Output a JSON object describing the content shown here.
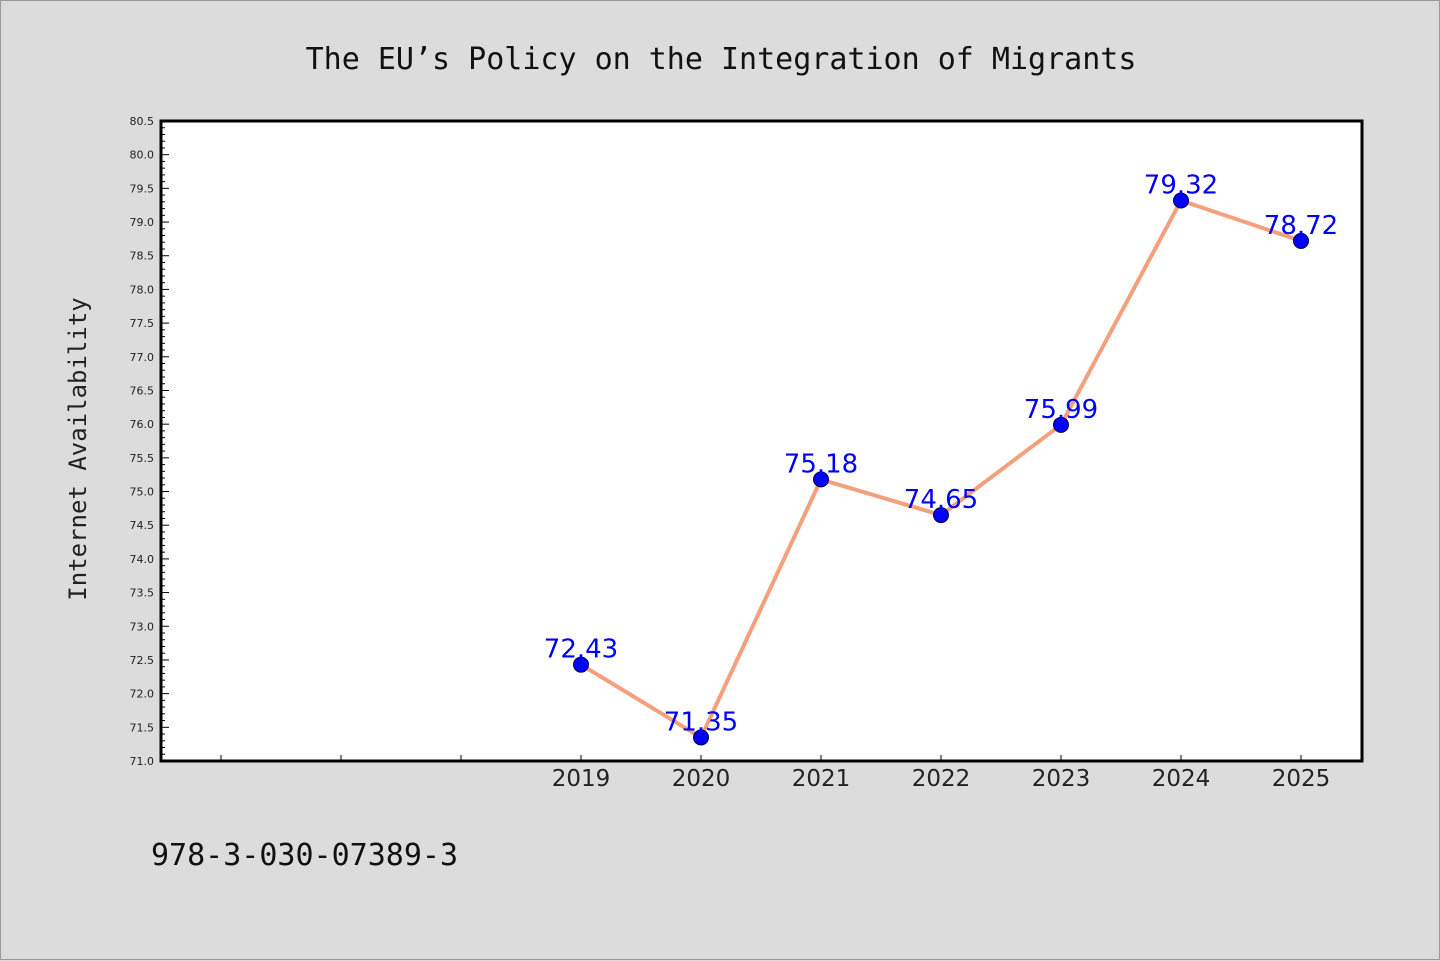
{
  "chart_data": {
    "type": "line",
    "title": "The EU’s Policy on the Integration of Migrants",
    "xlabel": "",
    "ylabel": "Internet Availability",
    "x": [
      "2019",
      "2020",
      "2021",
      "2022",
      "2023",
      "2024",
      "2025"
    ],
    "series": [
      {
        "values": [
          72.43,
          71.35,
          75.18,
          74.65,
          75.99,
          79.32,
          78.72
        ],
        "labels": [
          "72.43",
          "71.35",
          "75.18",
          "74.65",
          "75.99",
          "79.32",
          "78.72"
        ],
        "line_color": "#f4a07c",
        "marker_color": "#0000ff",
        "label_color": "#0000ff"
      }
    ],
    "ylim": [
      71.0,
      80.5
    ],
    "yticks": [
      "71.0",
      "71.5",
      "72.0",
      "72.5",
      "73.0",
      "73.5",
      "74.0",
      "74.5",
      "75.0",
      "75.5",
      "76.0",
      "76.5",
      "77.0",
      "77.5",
      "78.0",
      "78.5",
      "79.0",
      "79.5",
      "80.0",
      "80.5"
    ],
    "grid": false,
    "legend": "none"
  },
  "footer": {
    "isbn": "978-3-030-07389-3"
  }
}
